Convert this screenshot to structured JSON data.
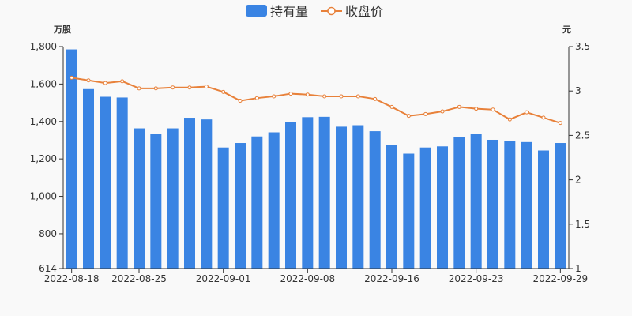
{
  "chart_data": {
    "type": "bar+line",
    "legend": {
      "placement": "top-center",
      "items": [
        {
          "label": "持有量",
          "marker": "bar"
        },
        {
          "label": "收盘价",
          "marker": "line"
        }
      ]
    },
    "left_axis": {
      "unit": "万股",
      "ylim": [
        614,
        1800
      ],
      "ticks": [
        614,
        800,
        1000,
        1200,
        1400,
        1600,
        1800
      ],
      "tick_labels": [
        "614",
        "800",
        "1,000",
        "1,200",
        "1,400",
        "1,600",
        "1,800"
      ]
    },
    "right_axis": {
      "unit": "元",
      "ylim": [
        1,
        3.5
      ],
      "ticks": [
        1,
        1.5,
        2,
        2.5,
        3,
        3.5
      ],
      "tick_labels": [
        "1",
        "1.5",
        "2",
        "2.5",
        "3",
        "3.5"
      ]
    },
    "x_tick_labels": [
      {
        "label": "2022-08-18",
        "index": 0
      },
      {
        "label": "2022-08-25",
        "index": 4
      },
      {
        "label": "2022-09-01",
        "index": 9
      },
      {
        "label": "2022-09-08",
        "index": 14
      },
      {
        "label": "2022-09-16",
        "index": 19
      },
      {
        "label": "2022-09-23",
        "index": 24
      },
      {
        "label": "2022-09-29",
        "index": 29
      }
    ],
    "grid": false,
    "series": [
      {
        "name": "持有量",
        "type": "bar",
        "axis": "left",
        "color": "#3a84e3",
        "values": [
          1785,
          1573,
          1532,
          1528,
          1363,
          1333,
          1363,
          1420,
          1411,
          1261,
          1285,
          1320,
          1342,
          1398,
          1423,
          1425,
          1372,
          1380,
          1348,
          1275,
          1228,
          1261,
          1267,
          1315,
          1335,
          1302,
          1297,
          1290,
          1245,
          1285
        ]
      },
      {
        "name": "收盘价",
        "type": "line",
        "axis": "right",
        "color": "#e8813a",
        "values": [
          3.15,
          3.12,
          3.09,
          3.11,
          3.03,
          3.03,
          3.04,
          3.04,
          3.05,
          2.99,
          2.89,
          2.92,
          2.94,
          2.97,
          2.96,
          2.94,
          2.94,
          2.94,
          2.91,
          2.82,
          2.72,
          2.74,
          2.77,
          2.82,
          2.8,
          2.79,
          2.68,
          2.76,
          2.7,
          2.64
        ]
      }
    ]
  }
}
